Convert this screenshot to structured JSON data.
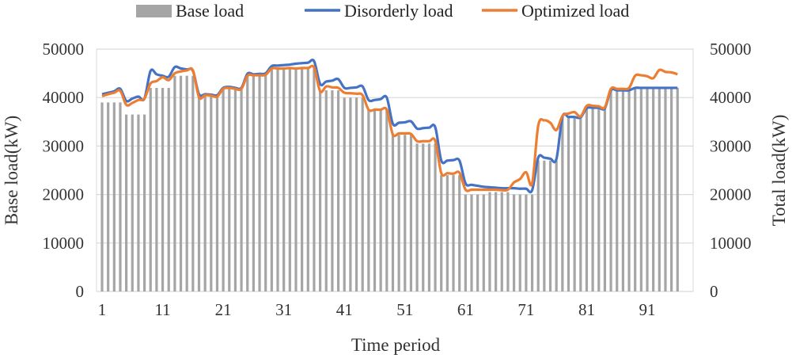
{
  "chart_data": {
    "type": "bar+line",
    "xlabel": "Time period",
    "ylabel_left": "Base load(kW)",
    "ylabel_right": "Total load(kW)",
    "ylim": [
      0,
      50000
    ],
    "yticks": [
      0,
      10000,
      20000,
      30000,
      40000,
      50000
    ],
    "xticks": [
      1,
      11,
      21,
      31,
      41,
      51,
      61,
      71,
      81,
      91
    ],
    "grid": true,
    "legend_position": "top",
    "x": [
      1,
      2,
      3,
      4,
      5,
      6,
      7,
      8,
      9,
      10,
      11,
      12,
      13,
      14,
      15,
      16,
      17,
      18,
      19,
      20,
      21,
      22,
      23,
      24,
      25,
      26,
      27,
      28,
      29,
      30,
      31,
      32,
      33,
      34,
      35,
      36,
      37,
      38,
      39,
      40,
      41,
      42,
      43,
      44,
      45,
      46,
      47,
      48,
      49,
      50,
      51,
      52,
      53,
      54,
      55,
      56,
      57,
      58,
      59,
      60,
      61,
      62,
      63,
      64,
      65,
      66,
      67,
      68,
      69,
      70,
      71,
      72,
      73,
      74,
      75,
      76,
      77,
      78,
      79,
      80,
      81,
      82,
      83,
      84,
      85,
      86,
      87,
      88,
      89,
      90,
      91,
      92,
      93,
      94,
      95,
      96
    ],
    "series": [
      {
        "name": "Base load",
        "kind": "bar",
        "color": "#A5A5A5",
        "values": [
          39000,
          39000,
          39000,
          39000,
          36500,
          36500,
          36500,
          36500,
          42000,
          42000,
          42000,
          42000,
          44500,
          44500,
          44500,
          44500,
          40300,
          40300,
          40300,
          40300,
          42000,
          42000,
          42000,
          42000,
          44700,
          44700,
          44700,
          44700,
          46000,
          46000,
          46000,
          46000,
          46000,
          46000,
          46000,
          46000,
          41500,
          41500,
          41500,
          41500,
          40000,
          40000,
          40000,
          40000,
          37500,
          37500,
          37500,
          37500,
          32300,
          32300,
          32300,
          32300,
          30500,
          30500,
          30500,
          30500,
          24000,
          24000,
          24000,
          24000,
          20000,
          20000,
          20000,
          20000,
          20500,
          20500,
          20500,
          20500,
          20000,
          20000,
          20000,
          20000,
          27000,
          27000,
          27000,
          27000,
          36000,
          36000,
          36000,
          36000,
          37800,
          37800,
          37800,
          37800,
          41500,
          41500,
          41500,
          41500,
          42000,
          42000,
          42000,
          42000,
          42000,
          42000,
          42000,
          42000
        ]
      },
      {
        "name": "Disorderly load",
        "kind": "line",
        "color": "#4472C4",
        "values": [
          40700,
          41000,
          41300,
          41800,
          39300,
          39800,
          40200,
          39800,
          45500,
          44800,
          44500,
          44300,
          46300,
          46000,
          45800,
          45500,
          40700,
          40700,
          40600,
          40500,
          42000,
          42200,
          42000,
          42000,
          44900,
          44800,
          44900,
          45000,
          46500,
          46600,
          46700,
          46800,
          47000,
          47100,
          47200,
          47500,
          42800,
          43300,
          43500,
          43800,
          42000,
          42000,
          42100,
          42300,
          39500,
          39500,
          39700,
          40000,
          34600,
          34800,
          34900,
          35100,
          33600,
          33700,
          33800,
          33900,
          27000,
          27000,
          27100,
          27000,
          22300,
          22000,
          21800,
          21600,
          21500,
          21400,
          21300,
          21300,
          21300,
          21200,
          21200,
          20900,
          27600,
          27600,
          27400,
          27300,
          36000,
          36000,
          36000,
          35900,
          37800,
          37900,
          37900,
          37800,
          41500,
          41500,
          41500,
          41500,
          42000,
          42000,
          42000,
          42000,
          42000,
          42000,
          42000,
          42000
        ]
      },
      {
        "name": "Optimized load",
        "kind": "line",
        "color": "#ED7D31",
        "values": [
          40300,
          40700,
          41000,
          41400,
          38500,
          38900,
          39500,
          39800,
          42900,
          43400,
          44200,
          43600,
          45000,
          45400,
          45600,
          45600,
          40100,
          40500,
          40400,
          40200,
          41800,
          42000,
          41800,
          41800,
          44500,
          44600,
          44600,
          44700,
          46000,
          46000,
          46000,
          46100,
          46000,
          46100,
          46100,
          46200,
          41300,
          42300,
          42100,
          42000,
          41000,
          40900,
          40800,
          40500,
          37500,
          37500,
          37500,
          37500,
          32400,
          32600,
          32600,
          32500,
          31000,
          31000,
          31000,
          31100,
          24400,
          24400,
          24300,
          24500,
          21000,
          21000,
          21000,
          21000,
          21000,
          21000,
          20900,
          21000,
          22500,
          23200,
          24600,
          22300,
          34200,
          35300,
          34800,
          33300,
          36200,
          36700,
          37000,
          36100,
          38300,
          38300,
          38200,
          38000,
          41800,
          41800,
          41800,
          42000,
          44500,
          44600,
          44400,
          44000,
          45700,
          45300,
          45200,
          44800
        ]
      }
    ]
  }
}
